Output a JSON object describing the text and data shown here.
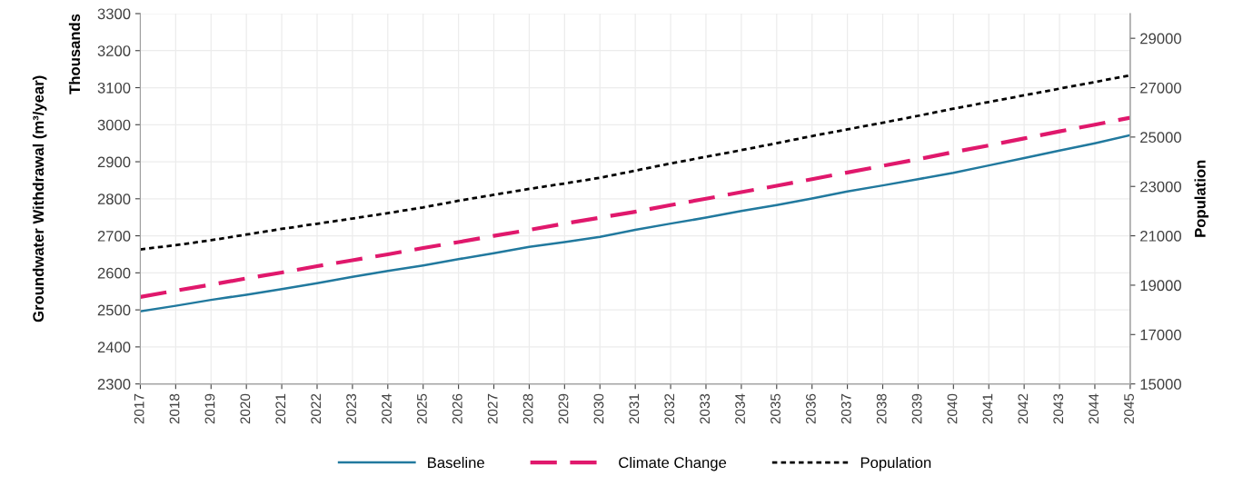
{
  "chart_data": {
    "type": "line",
    "ylabel": "Groundwater Withdrawal (m³/year)",
    "y2label": "Population",
    "annotations": [
      "Thousands"
    ],
    "categories": [
      "2017",
      "2018",
      "2019",
      "2020",
      "2021",
      "2022",
      "2023",
      "2024",
      "2025",
      "2026",
      "2027",
      "2028",
      "2029",
      "2030",
      "2031",
      "2032",
      "2033",
      "2034",
      "2035",
      "2036",
      "2037",
      "2038",
      "2039",
      "2040",
      "2041",
      "2042",
      "2043",
      "2044",
      "2045"
    ],
    "series": [
      {
        "name": "Baseline",
        "color": "#21799e",
        "line_style": "solid",
        "values": [
          2496,
          2511,
          2527,
          2541,
          2556,
          2572,
          2589,
          2605,
          2620,
          2637,
          2653,
          2670,
          2683,
          2697,
          2716,
          2733,
          2749,
          2767,
          2783,
          2801,
          2820,
          2836,
          2853,
          2870,
          2890,
          2910,
          2930,
          2950,
          2972
        ]
      },
      {
        "name": "Climate Change",
        "color": "#e0186c",
        "line_style": "dashed",
        "values": [
          2535,
          2552,
          2568,
          2585,
          2601,
          2618,
          2634,
          2650,
          2667,
          2683,
          2700,
          2716,
          2733,
          2749,
          2765,
          2783,
          2800,
          2818,
          2835,
          2853,
          2871,
          2889,
          2907,
          2926,
          2944,
          2963,
          2982,
          3000,
          3019
        ]
      },
      {
        "name": "Population",
        "color": "#000000",
        "line_style": "dotted",
        "axis": "y2",
        "values": [
          20450,
          20620,
          20820,
          21050,
          21280,
          21490,
          21700,
          21920,
          22150,
          22420,
          22660,
          22900,
          23120,
          23350,
          23640,
          23930,
          24200,
          24470,
          24750,
          25040,
          25310,
          25580,
          25860,
          26150,
          26420,
          26690,
          26960,
          27230,
          27500
        ]
      }
    ],
    "ylim": [
      2300,
      3300
    ],
    "yticks": [
      2300,
      2400,
      2500,
      2600,
      2700,
      2800,
      2900,
      3000,
      3100,
      3200,
      3300
    ],
    "y2lim": [
      15000,
      30000
    ],
    "y2ticks": [
      15000,
      17000,
      19000,
      21000,
      23000,
      25000,
      27000,
      29000
    ],
    "grid": true,
    "legend": "bottom",
    "marker": "none"
  }
}
